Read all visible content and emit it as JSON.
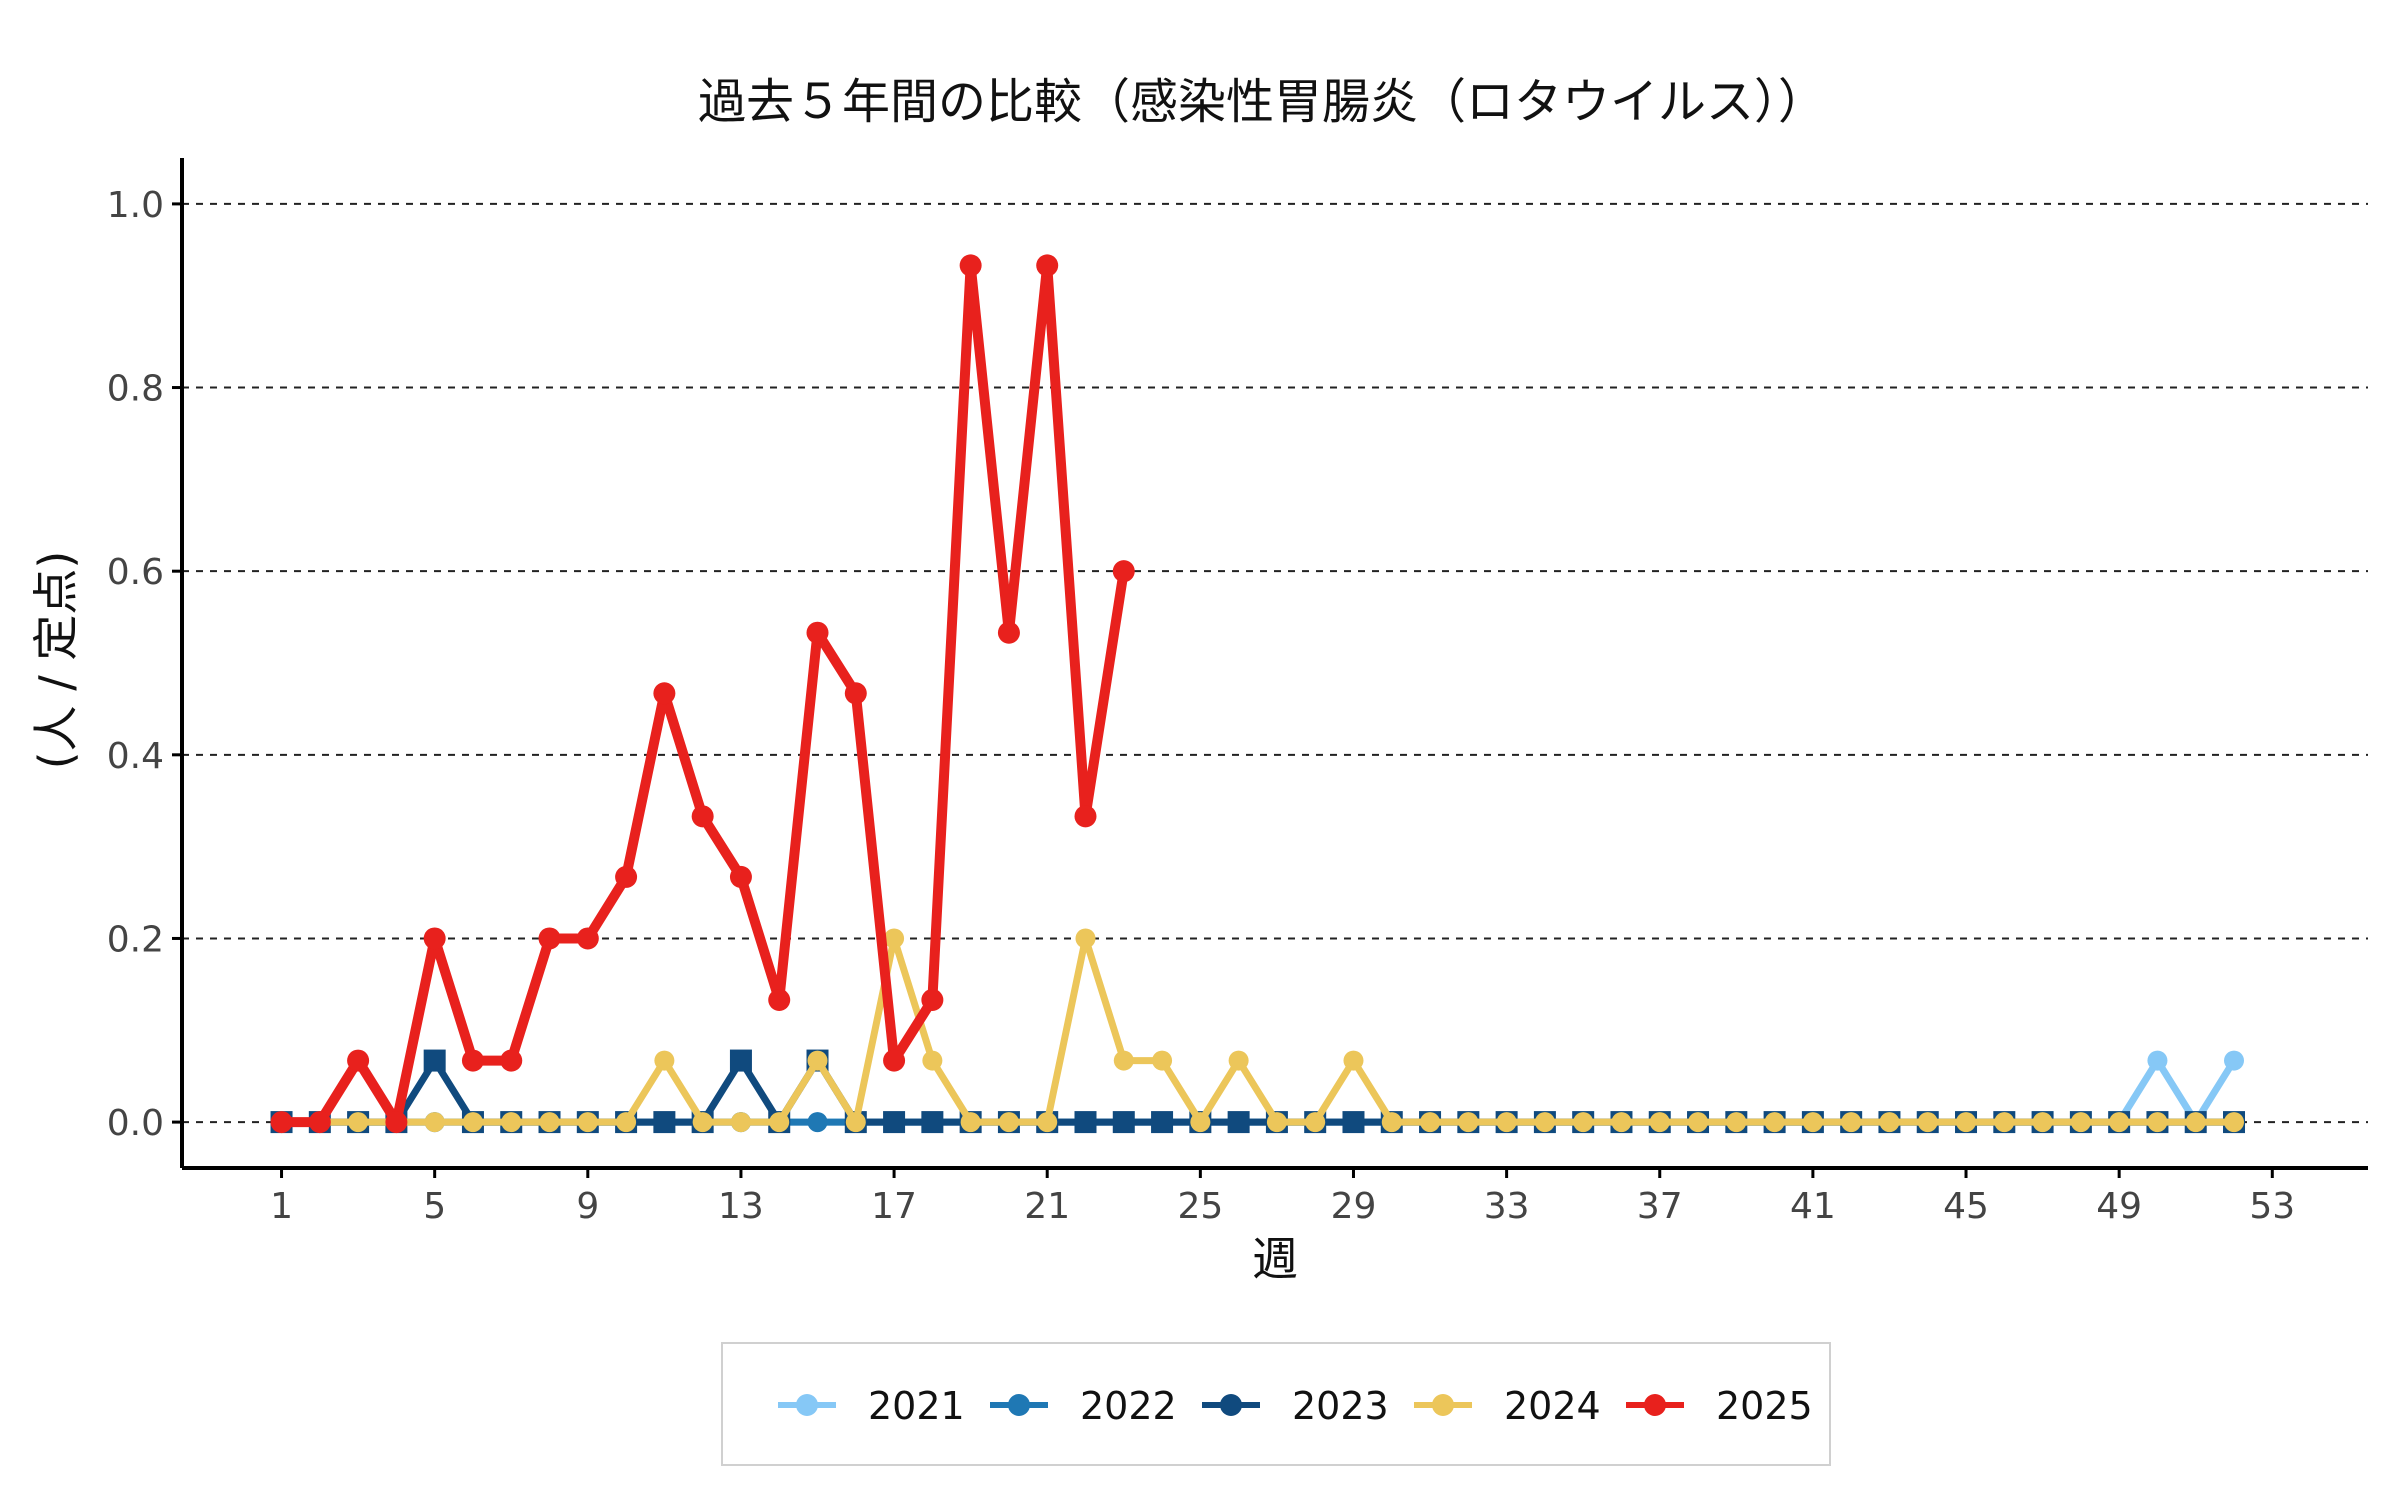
{
  "chart_data": {
    "type": "line",
    "title": "過去５年間の比較（感染性胃腸炎（ロタウイルス））",
    "xlabel": "週",
    "ylabel": "(人 / 定点)",
    "xlim": [
      -1.6,
      55.5
    ],
    "ylim": [
      -0.05,
      1.05
    ],
    "x_ticks": [
      1,
      5,
      9,
      13,
      17,
      21,
      25,
      29,
      33,
      37,
      41,
      45,
      49,
      53
    ],
    "y_ticks": [
      0.0,
      0.2,
      0.4,
      0.6,
      0.8,
      1.0
    ],
    "y_tick_labels": [
      "0.0",
      "0.2",
      "0.4",
      "0.6",
      "0.8",
      "1.0"
    ],
    "grid": "horizontal dashed",
    "legend_position": "bottom",
    "series": [
      {
        "name": "2021",
        "color": "#86c8f6",
        "marker": "circle",
        "values": [
          0,
          0,
          0,
          0,
          0,
          0,
          0,
          0,
          0,
          0,
          0,
          0,
          0,
          0,
          0,
          0,
          0,
          0,
          0,
          0,
          0,
          0,
          0,
          0,
          0,
          0,
          0,
          0,
          0,
          0,
          0,
          0,
          0,
          0,
          0,
          0,
          0,
          0,
          0,
          0,
          0,
          0,
          0,
          0,
          0,
          0,
          0,
          0,
          0,
          0.067,
          0,
          0.067
        ]
      },
      {
        "name": "2022",
        "color": "#1f78b4",
        "marker": "circle",
        "values": [
          0,
          0,
          0,
          0,
          0,
          0,
          0,
          0,
          0,
          0,
          0,
          0,
          0,
          0,
          0,
          0,
          0,
          0,
          0,
          0,
          0,
          0,
          0,
          0,
          0,
          0,
          0,
          0,
          0,
          0,
          0,
          0,
          0,
          0,
          0,
          0,
          0,
          0,
          0,
          0,
          0,
          0,
          0,
          0,
          0,
          0,
          0,
          0,
          0,
          0,
          0,
          0
        ]
      },
      {
        "name": "2023",
        "color": "#104a7e",
        "marker": "square",
        "values": [
          0,
          0,
          0,
          0,
          0.067,
          0,
          0,
          0,
          0,
          0,
          0,
          0,
          0.067,
          0,
          0.067,
          0,
          0,
          0,
          0,
          0,
          0,
          0,
          0,
          0,
          0,
          0,
          0,
          0,
          0,
          0,
          0,
          0,
          0,
          0,
          0,
          0,
          0,
          0,
          0,
          0,
          0,
          0,
          0,
          0,
          0,
          0,
          0,
          0,
          0,
          0,
          0,
          0
        ]
      },
      {
        "name": "2024",
        "color": "#ecc65a",
        "marker": "circle",
        "values": [
          0,
          0,
          0,
          0,
          0,
          0,
          0,
          0,
          0,
          0,
          0.067,
          0,
          0,
          0,
          0.067,
          0,
          0.2,
          0.067,
          0,
          0,
          0,
          0.2,
          0.067,
          0.067,
          0,
          0.067,
          0,
          0,
          0.067,
          0,
          0,
          0,
          0,
          0,
          0,
          0,
          0,
          0,
          0,
          0,
          0,
          0,
          0,
          0,
          0,
          0,
          0,
          0,
          0,
          0,
          0,
          0
        ]
      },
      {
        "name": "2025",
        "color": "#e8211d",
        "marker": "circle",
        "values": [
          0,
          0,
          0.067,
          0,
          0.2,
          0.067,
          0.067,
          0.2,
          0.2,
          0.267,
          0.467,
          0.333,
          0.267,
          0.133,
          0.533,
          0.467,
          0.067,
          0.133,
          0.933,
          0.533,
          0.933,
          0.333,
          0.6
        ]
      }
    ]
  }
}
